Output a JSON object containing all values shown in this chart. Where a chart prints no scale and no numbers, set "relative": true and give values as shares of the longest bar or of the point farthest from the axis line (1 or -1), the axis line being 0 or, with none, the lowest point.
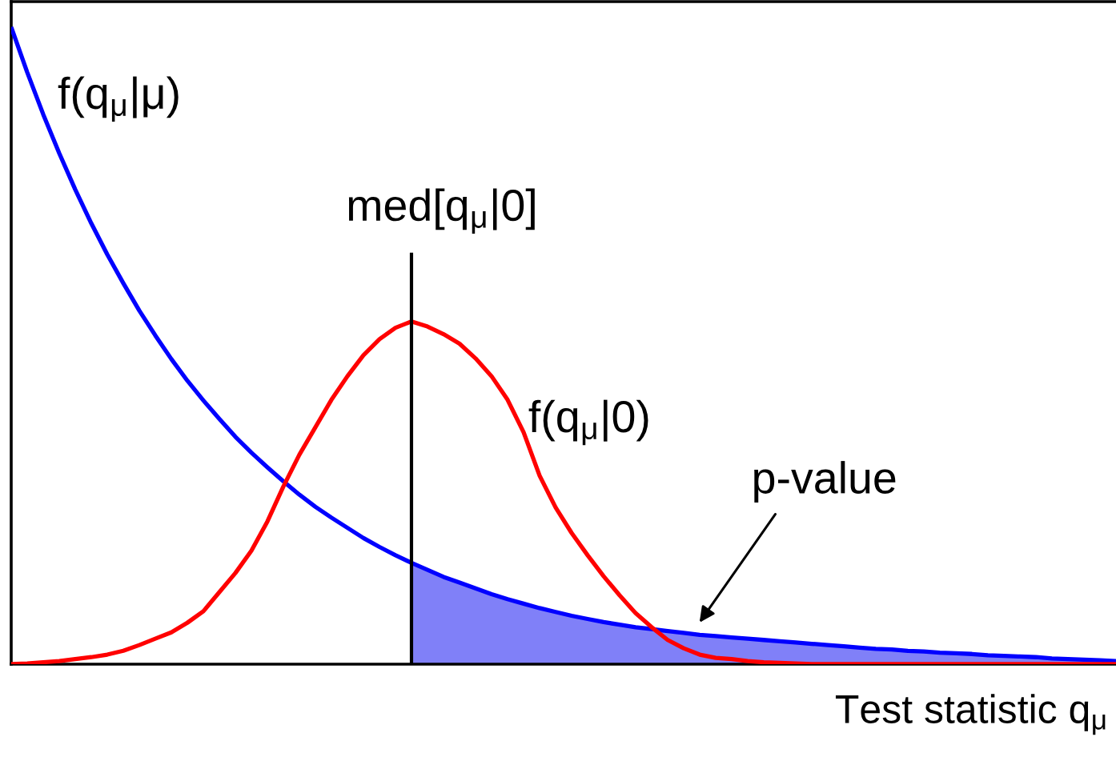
{
  "chart_data": {
    "type": "line",
    "relative": true,
    "xlabel": "Test statistic q$_{μ}$",
    "categories": [
      null,
      null,
      null,
      null,
      null,
      null,
      null,
      null,
      null,
      null,
      null,
      null,
      null,
      null,
      null,
      null,
      null,
      null,
      null,
      null,
      null,
      null,
      null,
      null,
      null,
      null,
      null,
      null,
      null,
      null,
      null,
      null,
      null,
      null,
      null,
      null,
      null,
      null,
      null,
      null,
      null,
      null,
      null,
      null,
      null,
      null,
      null,
      null,
      null,
      null,
      null,
      null,
      null,
      null,
      null,
      null,
      null,
      null,
      null,
      null,
      null,
      null,
      null,
      null,
      null,
      null,
      null,
      null,
      null,
      null
    ],
    "series": [
      {
        "name": "f(q$_{μ}$|μ)",
        "color": "#0000ff",
        "values": [
          1.0,
          0.929,
          0.863,
          0.802,
          0.745,
          0.692,
          0.643,
          0.598,
          0.555,
          0.516,
          0.479,
          0.445,
          0.414,
          0.385,
          0.357,
          0.332,
          0.309,
          0.287,
          0.266,
          0.247,
          0.23,
          0.214,
          0.198,
          0.184,
          0.171,
          0.159,
          0.148,
          0.137,
          0.128,
          0.119,
          0.11,
          0.102,
          0.095,
          0.088,
          0.082,
          0.076,
          0.071,
          0.066,
          0.062,
          0.058,
          0.055,
          0.052,
          0.049,
          0.046,
          0.044,
          0.042,
          0.04,
          0.038,
          0.036,
          0.034,
          0.032,
          0.03,
          0.028,
          0.026,
          0.024,
          0.023,
          0.021,
          0.02,
          0.018,
          0.017,
          0.016,
          0.014,
          0.013,
          0.012,
          0.011,
          0.009,
          0.008,
          0.007,
          0.006,
          0.005
        ]
      },
      {
        "name": "f(q$_{μ}$|0)",
        "color": "#ff0000",
        "values": [
          0.0,
          0.001,
          0.003,
          0.005,
          0.008,
          0.011,
          0.015,
          0.021,
          0.03,
          0.04,
          0.05,
          0.065,
          0.083,
          0.113,
          0.143,
          0.178,
          0.224,
          0.279,
          0.329,
          0.372,
          0.415,
          0.452,
          0.485,
          0.51,
          0.528,
          0.538,
          0.53,
          0.518,
          0.503,
          0.48,
          0.452,
          0.415,
          0.364,
          0.296,
          0.246,
          0.206,
          0.171,
          0.138,
          0.108,
          0.08,
          0.058,
          0.038,
          0.025,
          0.015,
          0.01,
          0.008,
          0.005,
          0.003,
          0.002,
          0.001,
          0.0,
          0.0,
          0.0,
          0.0,
          0.0,
          0.0,
          0.0,
          0.0,
          0.0,
          0.0,
          0.0,
          0.0,
          0.0,
          0.0,
          0.0,
          0.0,
          0.0,
          0.0,
          0.0,
          0.0
        ]
      },
      {
        "name": "p-value",
        "type": "area",
        "color": "#8080f8",
        "values": [
          null,
          null,
          null,
          null,
          null,
          null,
          null,
          null,
          null,
          null,
          null,
          null,
          null,
          null,
          null,
          null,
          null,
          null,
          null,
          null,
          null,
          null,
          null,
          null,
          null,
          0.159,
          0.148,
          0.137,
          0.128,
          0.119,
          0.11,
          0.102,
          0.095,
          0.088,
          0.082,
          0.076,
          0.071,
          0.066,
          0.062,
          0.058,
          0.055,
          0.052,
          0.049,
          0.046,
          0.044,
          0.042,
          0.04,
          0.038,
          0.036,
          0.034,
          0.032,
          0.03,
          0.028,
          0.026,
          0.024,
          0.023,
          0.021,
          0.02,
          0.018,
          0.017,
          0.016,
          0.014,
          0.013,
          0.012,
          0.011,
          0.009,
          0.008,
          0.007,
          0.006,
          0.005
        ]
      }
    ],
    "annotations": [
      "med[q$_{μ}$|0]"
    ]
  }
}
